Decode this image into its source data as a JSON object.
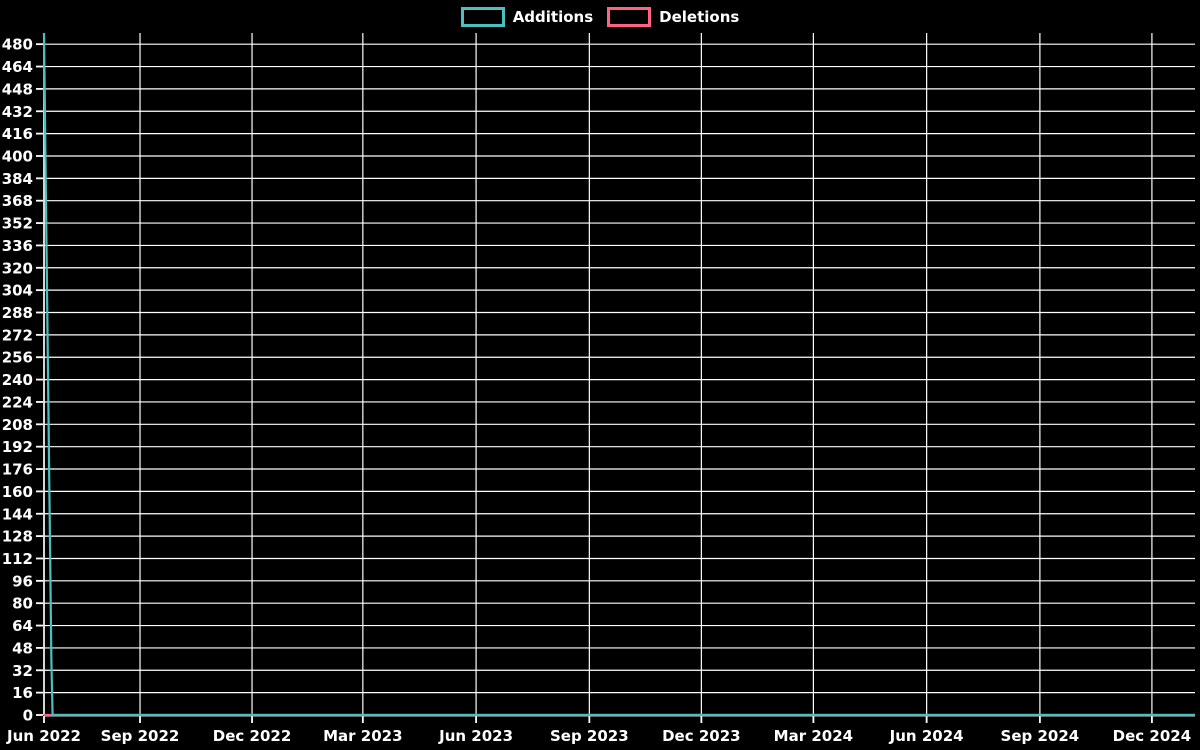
{
  "chart_data": {
    "type": "line",
    "title": "",
    "background_color": "#000000",
    "grid_color": "#FFFFFF",
    "axis_color": "#FFFFFF",
    "text_color": "#FFFFFF",
    "legend": {
      "position": "top-center"
    },
    "x_axis": {
      "type": "time",
      "start": "2022-06-15",
      "end": "2025-01-05",
      "ticks": [
        {
          "label": "Jun 2022",
          "date": "2022-06-15"
        },
        {
          "label": "Sep 2022",
          "date": "2022-09-01"
        },
        {
          "label": "Dec 2022",
          "date": "2022-12-01"
        },
        {
          "label": "Mar 2023",
          "date": "2023-03-01"
        },
        {
          "label": "Jun 2023",
          "date": "2023-06-01"
        },
        {
          "label": "Sep 2023",
          "date": "2023-09-01"
        },
        {
          "label": "Dec 2023",
          "date": "2023-12-01"
        },
        {
          "label": "Mar 2024",
          "date": "2024-03-01"
        },
        {
          "label": "Jun 2024",
          "date": "2024-06-01"
        },
        {
          "label": "Sep 2024",
          "date": "2024-09-01"
        },
        {
          "label": "Dec 2024",
          "date": "2024-12-01"
        }
      ],
      "grid": true
    },
    "y_axis": {
      "min": 0,
      "max": 488,
      "tick_min": 0,
      "tick_max": 480,
      "tick_step": 16,
      "grid": true
    },
    "series": [
      {
        "name": "Additions",
        "color": "#4BC0C0",
        "points": [
          [
            "2022-06-15",
            488
          ],
          [
            "2022-06-21",
            38
          ],
          [
            "2022-06-22",
            0
          ],
          [
            "2025-01-05",
            0
          ]
        ]
      },
      {
        "name": "Deletions",
        "color": "#FF6384",
        "points": [
          [
            "2022-06-15",
            0
          ],
          [
            "2025-01-05",
            0
          ]
        ]
      }
    ]
  }
}
